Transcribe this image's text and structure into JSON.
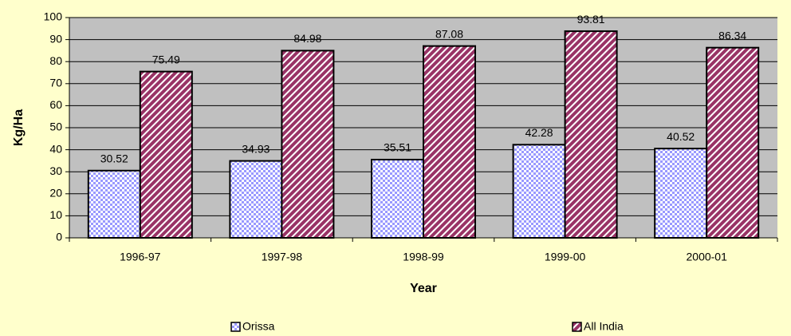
{
  "chart_data": {
    "type": "bar",
    "x_label": "Year",
    "y_label": "Kg/Ha",
    "categories": [
      "1996-97",
      "1997-98",
      "1998-99",
      "1999-00",
      "2000-01"
    ],
    "series": [
      {
        "name": "Orissa",
        "color": "#9999ff",
        "values": [
          30.52,
          34.93,
          35.51,
          42.28,
          40.52
        ]
      },
      {
        "name": "All India",
        "color": "#993366",
        "values": [
          75.49,
          84.98,
          87.08,
          93.81,
          86.34
        ]
      }
    ],
    "ylim": [
      0,
      100
    ],
    "yticks": [
      0,
      10,
      20,
      30,
      40,
      50,
      60,
      70,
      80,
      90,
      100
    ],
    "grid": true,
    "legend": "bottom"
  }
}
